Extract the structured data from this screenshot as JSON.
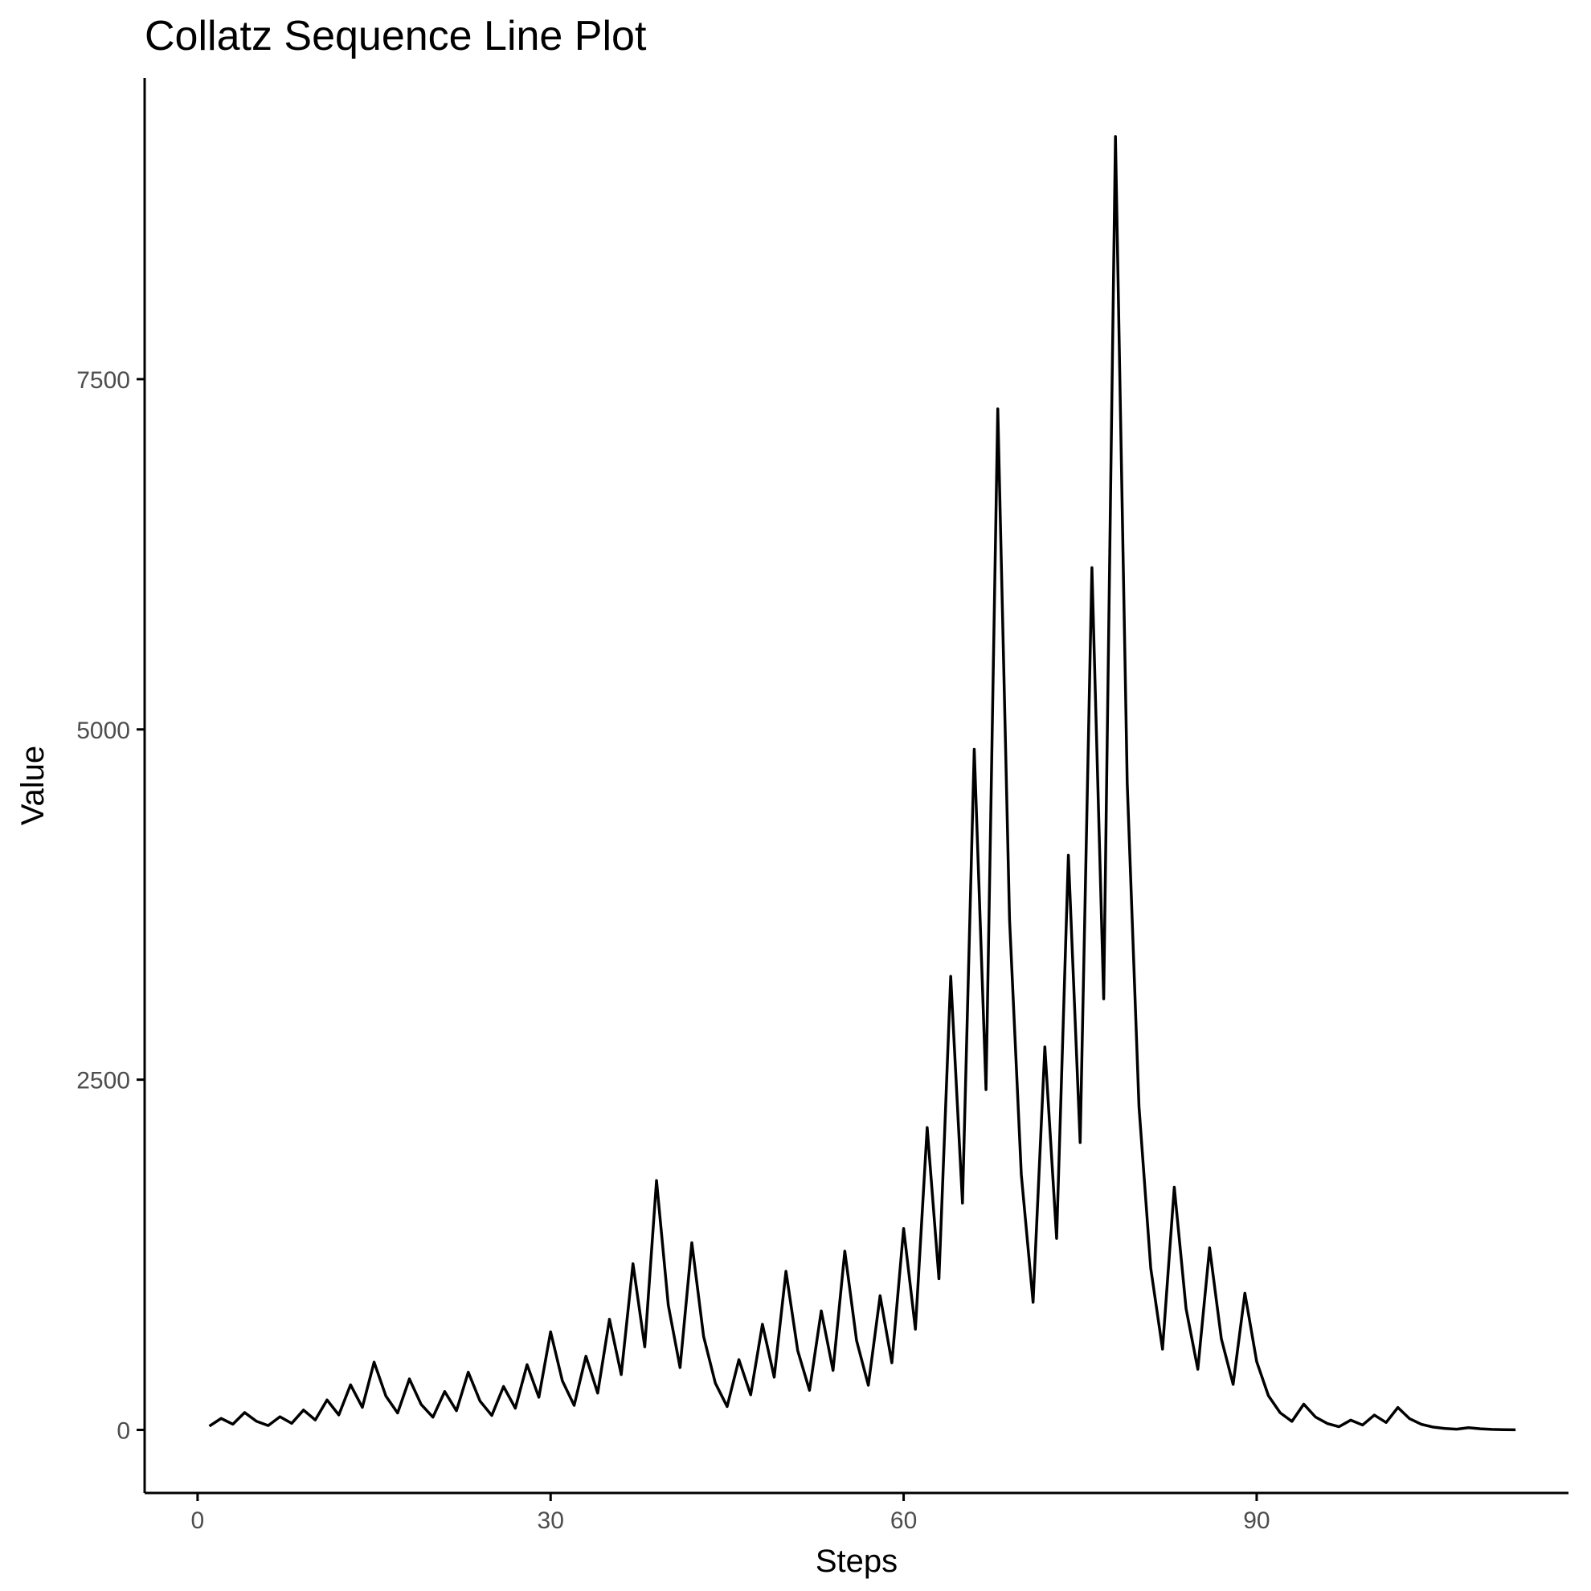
{
  "chart_data": {
    "type": "line",
    "title": "Collatz Sequence Line Plot",
    "xlabel": "Steps",
    "ylabel": "Value",
    "xlim": [
      -4.5,
      116.5
    ],
    "ylim": [
      -450,
      9650
    ],
    "x_ticks": [
      0,
      30,
      60,
      90
    ],
    "y_ticks": [
      0,
      2500,
      5000,
      7500
    ],
    "grid": false,
    "legend": "none",
    "line_color": "#000000",
    "series": [
      {
        "x": [
          1,
          2,
          3,
          4,
          5,
          6,
          7,
          8,
          9,
          10,
          11,
          12,
          13,
          14,
          15,
          16,
          17,
          18,
          19,
          20,
          21,
          22,
          23,
          24,
          25,
          26,
          27,
          28,
          29,
          30,
          31,
          32,
          33,
          34,
          35,
          36,
          37,
          38,
          39,
          40,
          41,
          42,
          43,
          44,
          45,
          46,
          47,
          48,
          49,
          50,
          51,
          52,
          53,
          54,
          55,
          56,
          57,
          58,
          59,
          60,
          61,
          62,
          63,
          64,
          65,
          66,
          67,
          68,
          69,
          70,
          71,
          72,
          73,
          74,
          75,
          76,
          77,
          78,
          79,
          80,
          81,
          82,
          83,
          84,
          85,
          86,
          87,
          88,
          89,
          90,
          91,
          92,
          93,
          94,
          95,
          96,
          97,
          98,
          99,
          100,
          101,
          102,
          103,
          104,
          105,
          106,
          107,
          108,
          109,
          110,
          111,
          112
        ],
        "y": [
          27,
          82,
          41,
          124,
          62,
          31,
          94,
          47,
          142,
          71,
          214,
          107,
          322,
          161,
          484,
          242,
          121,
          364,
          182,
          91,
          274,
          137,
          412,
          206,
          103,
          310,
          155,
          466,
          233,
          700,
          350,
          175,
          526,
          263,
          790,
          395,
          1186,
          593,
          1780,
          890,
          445,
          1336,
          668,
          334,
          167,
          502,
          251,
          754,
          377,
          1132,
          566,
          283,
          850,
          425,
          1276,
          638,
          319,
          958,
          479,
          1438,
          719,
          2158,
          1079,
          3238,
          1619,
          4858,
          2429,
          7288,
          3644,
          1822,
          911,
          2734,
          1367,
          4102,
          2051,
          6154,
          3077,
          9232,
          4616,
          2308,
          1154,
          577,
          1732,
          866,
          433,
          1300,
          650,
          325,
          976,
          488,
          244,
          122,
          61,
          184,
          92,
          46,
          23,
          70,
          35,
          106,
          53,
          160,
          80,
          40,
          20,
          10,
          5,
          16,
          8,
          4,
          2,
          1
        ]
      }
    ]
  }
}
